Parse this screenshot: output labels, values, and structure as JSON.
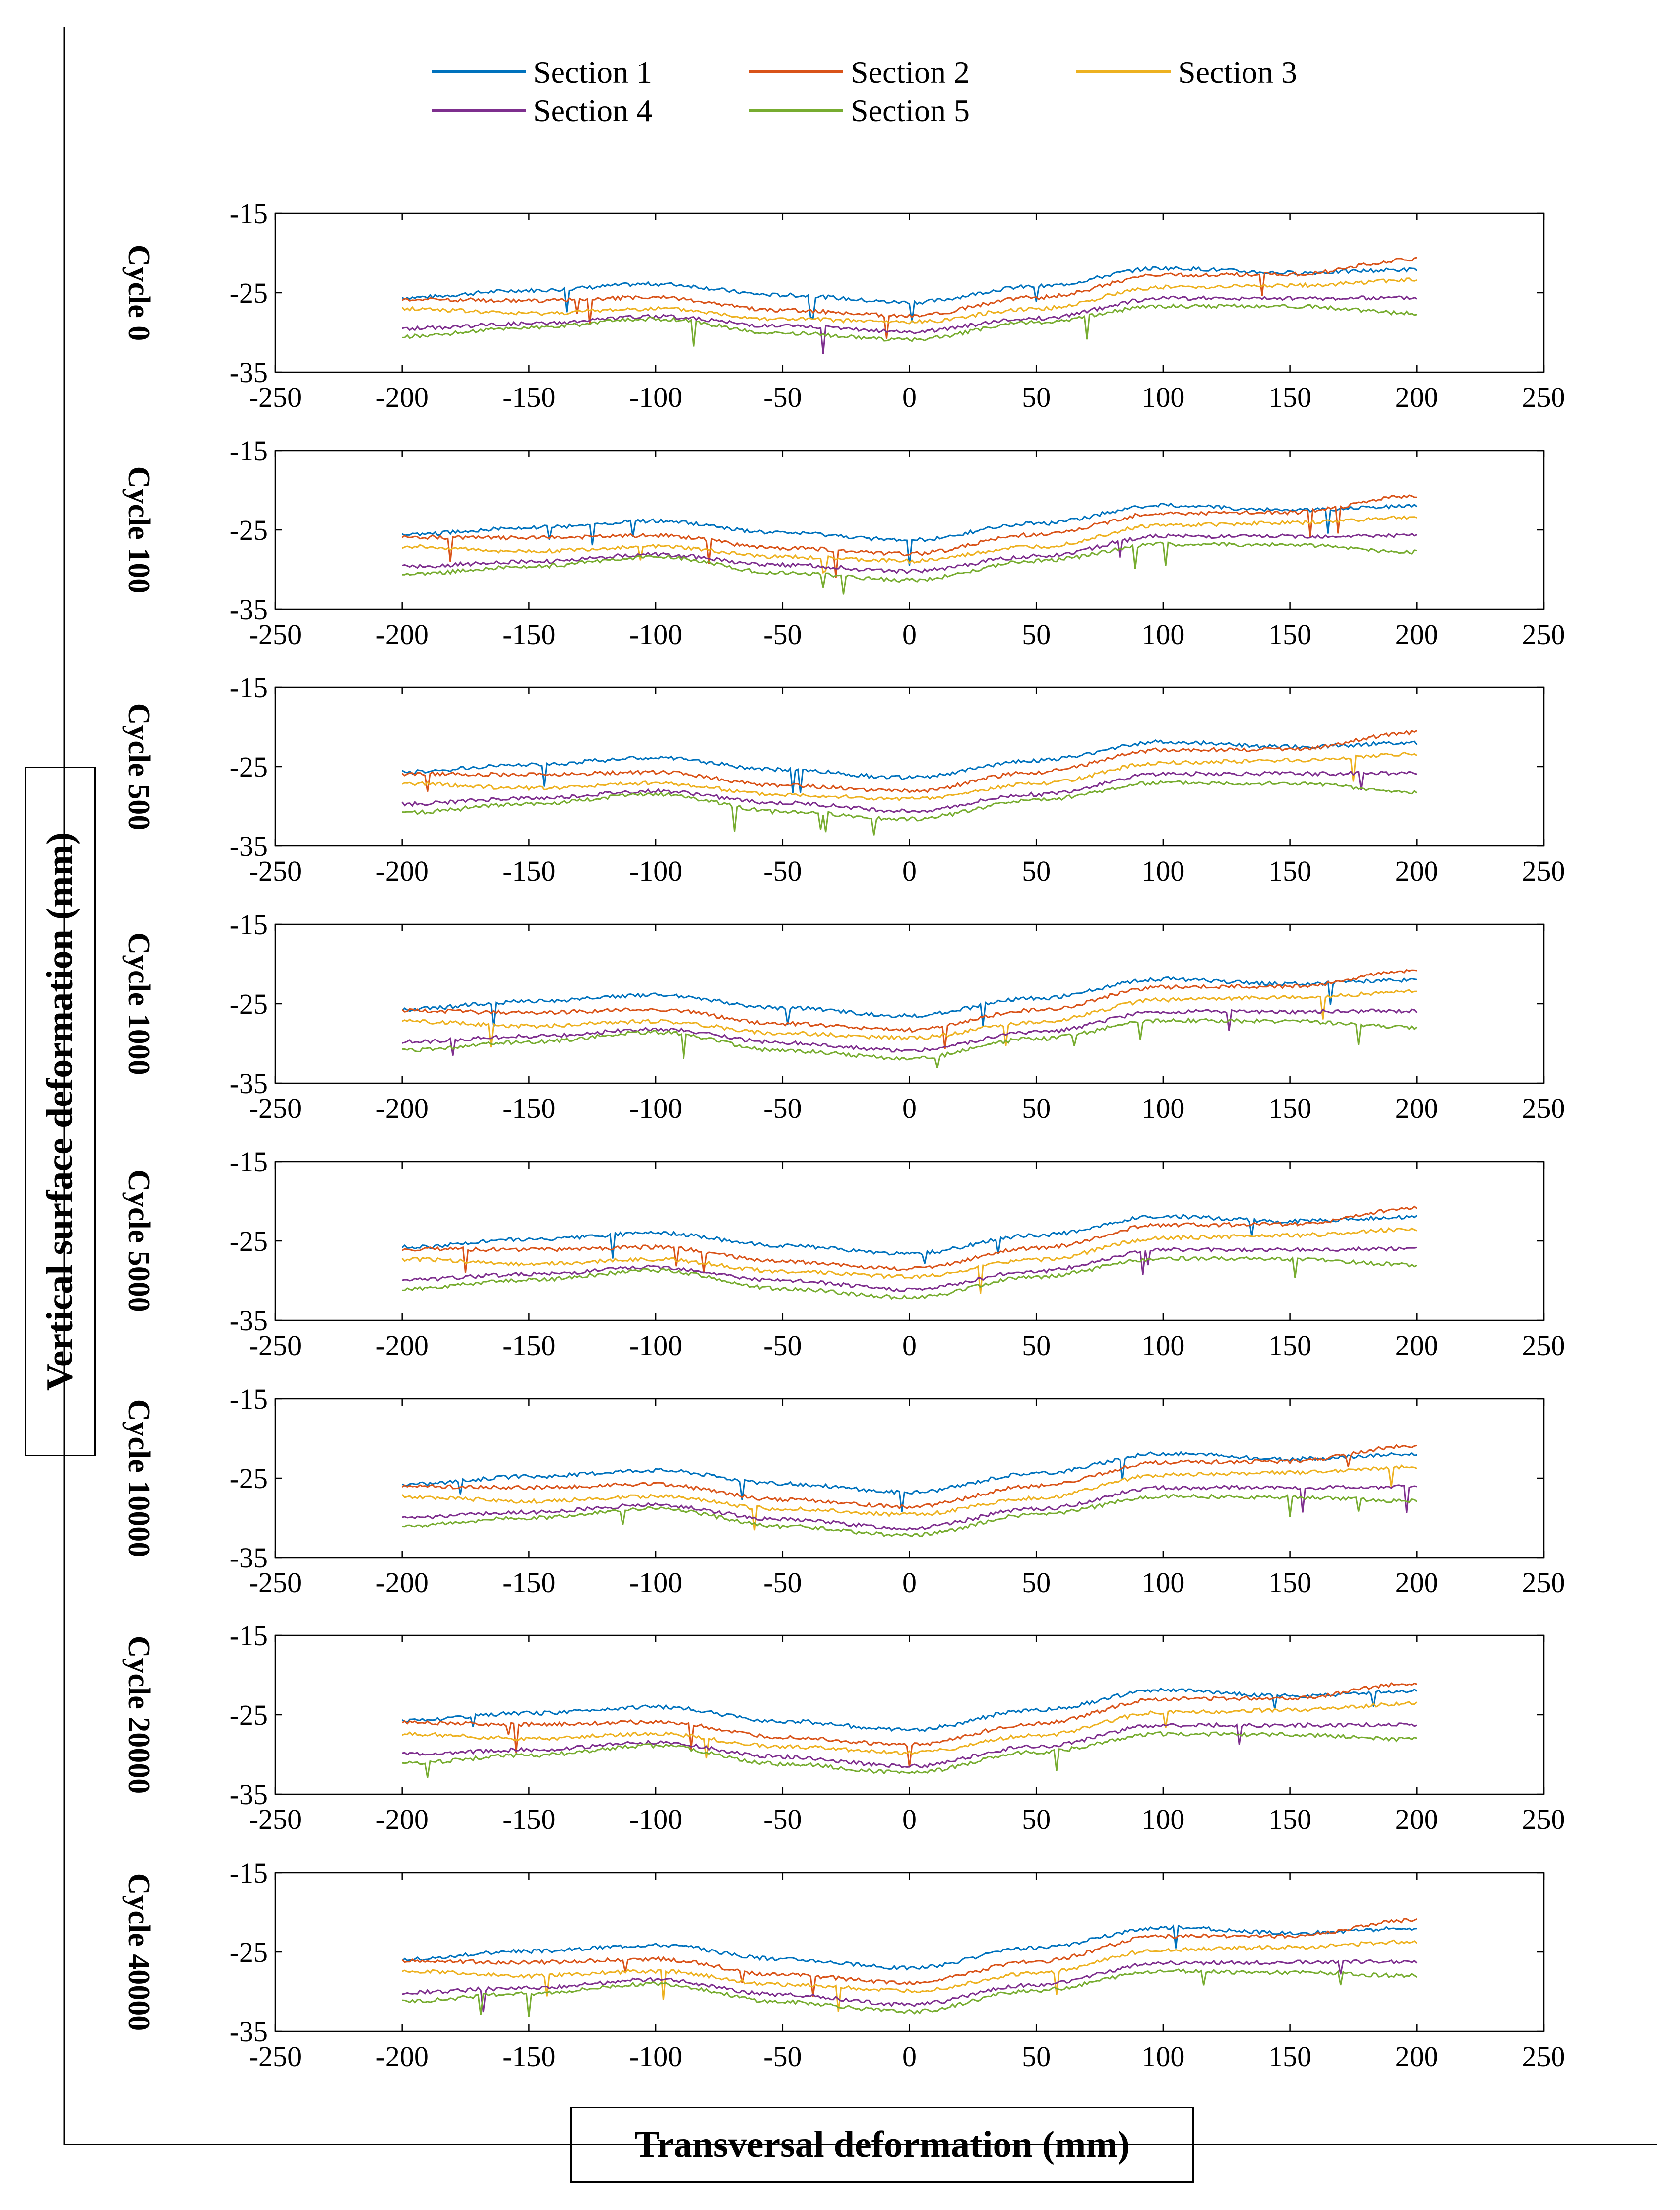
{
  "figure": {
    "y_axis_title": "Vertical surface deformation (mm)",
    "x_axis_title": "Transversal deformation (mm)"
  },
  "legend": [
    {
      "name": "Section 1",
      "color": "#0072BD"
    },
    {
      "name": "Section 2",
      "color": "#D95319"
    },
    {
      "name": "Section 3",
      "color": "#EDB120"
    },
    {
      "name": "Section 4",
      "color": "#7E2F8E"
    },
    {
      "name": "Section 5",
      "color": "#77AC30"
    }
  ],
  "chart_data": [
    {
      "type": "line",
      "title": "Cycle 0",
      "xlim": [
        -250,
        250
      ],
      "ylim": [
        -35,
        -15
      ],
      "xticks": [
        "-250",
        "-200",
        "-150",
        "-100",
        "-50",
        "0",
        "50",
        "100",
        "150",
        "200",
        "250"
      ],
      "yticks": [
        "-15",
        "-25",
        "-35"
      ],
      "x": [
        -200,
        -150,
        -100,
        -50,
        0,
        50,
        100,
        150,
        200
      ],
      "series": [
        {
          "name": "Section 1",
          "values": [
            -25.6,
            -24.7,
            -23.9,
            -25.3,
            -26.2,
            -24.2,
            -21.9,
            -22.5,
            -22.1
          ]
        },
        {
          "name": "Section 2",
          "values": [
            -25.8,
            -26.0,
            -25.6,
            -27.2,
            -27.9,
            -25.6,
            -22.8,
            -22.7,
            -20.8
          ]
        },
        {
          "name": "Section 3",
          "values": [
            -27.0,
            -27.6,
            -27.0,
            -28.3,
            -28.7,
            -27.0,
            -24.3,
            -24.1,
            -23.4
          ]
        },
        {
          "name": "Section 4",
          "values": [
            -29.5,
            -28.9,
            -28.0,
            -29.2,
            -29.9,
            -28.2,
            -25.7,
            -25.7,
            -25.6
          ]
        },
        {
          "name": "Section 5",
          "values": [
            -30.5,
            -29.4,
            -28.3,
            -30.1,
            -30.9,
            -28.7,
            -26.7,
            -26.7,
            -27.6
          ]
        }
      ]
    },
    {
      "type": "line",
      "title": "Cycle 100",
      "xlim": [
        -250,
        250
      ],
      "ylim": [
        -35,
        -15
      ],
      "xticks": [
        "-250",
        "-200",
        "-150",
        "-100",
        "-50",
        "0",
        "50",
        "100",
        "150",
        "200",
        "250"
      ],
      "yticks": [
        "-15",
        "-25",
        "-35"
      ],
      "x": [
        -200,
        -150,
        -100,
        -50,
        0,
        50,
        100,
        150,
        200
      ],
      "series": [
        {
          "name": "Section 1",
          "values": [
            -25.6,
            -24.7,
            -23.9,
            -25.4,
            -26.3,
            -24.2,
            -21.9,
            -22.5,
            -22.0
          ]
        },
        {
          "name": "Section 2",
          "values": [
            -25.9,
            -26.0,
            -25.7,
            -27.3,
            -28.0,
            -25.6,
            -22.9,
            -22.8,
            -20.7
          ]
        },
        {
          "name": "Section 3",
          "values": [
            -27.1,
            -27.7,
            -27.1,
            -28.4,
            -28.9,
            -27.1,
            -24.4,
            -24.1,
            -23.4
          ]
        },
        {
          "name": "Section 4",
          "values": [
            -29.6,
            -29.0,
            -28.1,
            -29.4,
            -30.2,
            -28.3,
            -25.8,
            -25.8,
            -25.7
          ]
        },
        {
          "name": "Section 5",
          "values": [
            -30.6,
            -29.6,
            -28.4,
            -30.4,
            -31.3,
            -28.9,
            -26.8,
            -26.9,
            -27.8
          ]
        }
      ]
    },
    {
      "type": "line",
      "title": "Cycle 500",
      "xlim": [
        -250,
        250
      ],
      "ylim": [
        -35,
        -15
      ],
      "xticks": [
        "-250",
        "-200",
        "-150",
        "-100",
        "-50",
        "0",
        "50",
        "100",
        "150",
        "200",
        "250"
      ],
      "yticks": [
        "-15",
        "-25",
        "-35"
      ],
      "x": [
        -200,
        -150,
        -100,
        -50,
        0,
        50,
        100,
        150,
        200
      ],
      "series": [
        {
          "name": "Section 1",
          "values": [
            -25.7,
            -24.7,
            -23.9,
            -25.4,
            -26.4,
            -24.2,
            -21.9,
            -22.5,
            -22.0
          ]
        },
        {
          "name": "Section 2",
          "values": [
            -25.9,
            -26.0,
            -25.7,
            -27.4,
            -28.1,
            -25.7,
            -22.9,
            -22.8,
            -20.7
          ]
        },
        {
          "name": "Section 3",
          "values": [
            -27.1,
            -27.7,
            -27.1,
            -28.5,
            -29.1,
            -27.2,
            -24.5,
            -24.2,
            -23.4
          ]
        },
        {
          "name": "Section 4",
          "values": [
            -29.7,
            -29.0,
            -28.1,
            -29.6,
            -30.6,
            -28.5,
            -25.9,
            -25.9,
            -25.8
          ]
        },
        {
          "name": "Section 5",
          "values": [
            -30.8,
            -29.7,
            -28.5,
            -30.7,
            -31.6,
            -29.2,
            -27.0,
            -27.1,
            -28.2
          ]
        }
      ]
    },
    {
      "type": "line",
      "title": "Cycle 1000",
      "xlim": [
        -250,
        250
      ],
      "ylim": [
        -35,
        -15
      ],
      "xticks": [
        "-250",
        "-200",
        "-150",
        "-100",
        "-50",
        "0",
        "50",
        "100",
        "150",
        "200",
        "250"
      ],
      "yticks": [
        "-15",
        "-25",
        "-35"
      ],
      "x": [
        -200,
        -150,
        -100,
        -50,
        0,
        50,
        100,
        150,
        200
      ],
      "series": [
        {
          "name": "Section 1",
          "values": [
            -25.7,
            -24.7,
            -23.9,
            -25.5,
            -26.5,
            -24.3,
            -21.9,
            -22.5,
            -22.0
          ]
        },
        {
          "name": "Section 2",
          "values": [
            -25.9,
            -26.1,
            -25.7,
            -27.5,
            -28.3,
            -25.8,
            -22.9,
            -22.8,
            -20.8
          ]
        },
        {
          "name": "Section 3",
          "values": [
            -27.2,
            -27.8,
            -27.2,
            -28.7,
            -29.3,
            -27.3,
            -24.5,
            -24.2,
            -23.5
          ]
        },
        {
          "name": "Section 4",
          "values": [
            -29.8,
            -29.1,
            -28.2,
            -29.9,
            -30.9,
            -28.6,
            -26.0,
            -26.0,
            -25.9
          ]
        },
        {
          "name": "Section 5",
          "values": [
            -30.9,
            -29.8,
            -28.6,
            -30.9,
            -31.9,
            -29.4,
            -27.1,
            -27.2,
            -28.0
          ]
        }
      ]
    },
    {
      "type": "line",
      "title": "Cycle 5000",
      "xlim": [
        -250,
        250
      ],
      "ylim": [
        -35,
        -15
      ],
      "xticks": [
        "-250",
        "-200",
        "-150",
        "-100",
        "-50",
        "0",
        "50",
        "100",
        "150",
        "200",
        "250"
      ],
      "yticks": [
        "-15",
        "-25",
        "-35"
      ],
      "x": [
        -200,
        -150,
        -100,
        -50,
        0,
        50,
        100,
        150,
        200
      ],
      "series": [
        {
          "name": "Section 1",
          "values": [
            -25.8,
            -24.8,
            -24.0,
            -25.6,
            -26.6,
            -24.3,
            -21.9,
            -22.5,
            -22.0
          ]
        },
        {
          "name": "Section 2",
          "values": [
            -26.0,
            -26.1,
            -25.8,
            -27.6,
            -28.5,
            -25.9,
            -23.0,
            -22.9,
            -20.9
          ]
        },
        {
          "name": "Section 3",
          "values": [
            -27.3,
            -27.9,
            -27.3,
            -28.8,
            -29.5,
            -27.4,
            -24.6,
            -24.3,
            -23.5
          ]
        },
        {
          "name": "Section 4",
          "values": [
            -29.9,
            -29.2,
            -28.3,
            -30.0,
            -31.1,
            -28.8,
            -26.1,
            -26.1,
            -26.0
          ]
        },
        {
          "name": "Section 5",
          "values": [
            -31.0,
            -29.9,
            -28.7,
            -31.0,
            -32.1,
            -29.5,
            -27.2,
            -27.3,
            -28.0
          ]
        }
      ]
    },
    {
      "type": "line",
      "title": "Cycle 10000",
      "xlim": [
        -250,
        250
      ],
      "ylim": [
        -35,
        -15
      ],
      "xticks": [
        "-250",
        "-200",
        "-150",
        "-100",
        "-50",
        "0",
        "50",
        "100",
        "150",
        "200",
        "250"
      ],
      "yticks": [
        "-15",
        "-25",
        "-35"
      ],
      "x": [
        -200,
        -150,
        -100,
        -50,
        0,
        50,
        100,
        150,
        200
      ],
      "series": [
        {
          "name": "Section 1",
          "values": [
            -25.8,
            -24.8,
            -24.0,
            -25.7,
            -26.8,
            -24.4,
            -21.9,
            -22.6,
            -22.0
          ]
        },
        {
          "name": "Section 2",
          "values": [
            -26.0,
            -26.2,
            -25.8,
            -27.7,
            -28.6,
            -26.0,
            -23.0,
            -22.9,
            -20.9
          ]
        },
        {
          "name": "Section 3",
          "values": [
            -27.3,
            -27.9,
            -27.3,
            -28.9,
            -29.6,
            -27.5,
            -24.6,
            -24.3,
            -23.6
          ]
        },
        {
          "name": "Section 4",
          "values": [
            -30.0,
            -29.3,
            -28.4,
            -30.2,
            -31.3,
            -28.9,
            -26.2,
            -26.2,
            -26.1
          ]
        },
        {
          "name": "Section 5",
          "values": [
            -31.0,
            -30.0,
            -28.8,
            -31.1,
            -32.2,
            -29.6,
            -27.3,
            -27.4,
            -27.9
          ]
        }
      ]
    },
    {
      "type": "line",
      "title": "Cycle 20000",
      "xlim": [
        -250,
        250
      ],
      "ylim": [
        -35,
        -15
      ],
      "xticks": [
        "-250",
        "-200",
        "-150",
        "-100",
        "-50",
        "0",
        "50",
        "100",
        "150",
        "200",
        "250"
      ],
      "yticks": [
        "-15",
        "-25",
        "-35"
      ],
      "x": [
        -200,
        -150,
        -100,
        -50,
        0,
        50,
        100,
        150,
        200
      ],
      "series": [
        {
          "name": "Section 1",
          "values": [
            -25.8,
            -24.8,
            -24.0,
            -25.8,
            -26.9,
            -24.4,
            -21.9,
            -22.6,
            -22.0
          ]
        },
        {
          "name": "Section 2",
          "values": [
            -26.0,
            -26.2,
            -25.9,
            -27.8,
            -28.8,
            -26.1,
            -23.0,
            -22.9,
            -21.0
          ]
        },
        {
          "name": "Section 3",
          "values": [
            -27.4,
            -28.0,
            -27.4,
            -29.0,
            -29.8,
            -27.6,
            -24.7,
            -24.4,
            -23.6
          ]
        },
        {
          "name": "Section 4",
          "values": [
            -30.0,
            -29.4,
            -28.5,
            -30.3,
            -31.5,
            -29.0,
            -26.3,
            -26.3,
            -26.2
          ]
        },
        {
          "name": "Section 5",
          "values": [
            -31.1,
            -30.1,
            -28.9,
            -31.2,
            -32.3,
            -29.7,
            -27.4,
            -27.5,
            -28.1
          ]
        }
      ]
    },
    {
      "type": "line",
      "title": "Cycle 40000",
      "xlim": [
        -250,
        250
      ],
      "ylim": [
        -35,
        -15
      ],
      "xticks": [
        "-250",
        "-200",
        "-150",
        "-100",
        "-50",
        "0",
        "50",
        "100",
        "150",
        "200",
        "250"
      ],
      "yticks": [
        "-15",
        "-25",
        "-35"
      ],
      "x": [
        -200,
        -150,
        -100,
        -50,
        0,
        50,
        100,
        150,
        200
      ],
      "series": [
        {
          "name": "Section 1",
          "values": [
            -25.9,
            -24.9,
            -24.1,
            -25.9,
            -27.0,
            -24.5,
            -21.9,
            -22.6,
            -22.0
          ]
        },
        {
          "name": "Section 2",
          "values": [
            -26.1,
            -26.3,
            -25.9,
            -27.9,
            -28.9,
            -26.2,
            -23.0,
            -23.0,
            -21.0
          ]
        },
        {
          "name": "Section 3",
          "values": [
            -27.4,
            -28.0,
            -27.4,
            -29.1,
            -29.9,
            -27.7,
            -24.7,
            -24.4,
            -23.7
          ]
        },
        {
          "name": "Section 4",
          "values": [
            -30.1,
            -29.5,
            -28.5,
            -30.4,
            -31.6,
            -29.1,
            -26.4,
            -26.3,
            -26.2
          ]
        },
        {
          "name": "Section 5",
          "values": [
            -31.2,
            -30.2,
            -29.0,
            -31.3,
            -32.5,
            -29.8,
            -27.4,
            -27.6,
            -28.0
          ]
        }
      ]
    }
  ]
}
